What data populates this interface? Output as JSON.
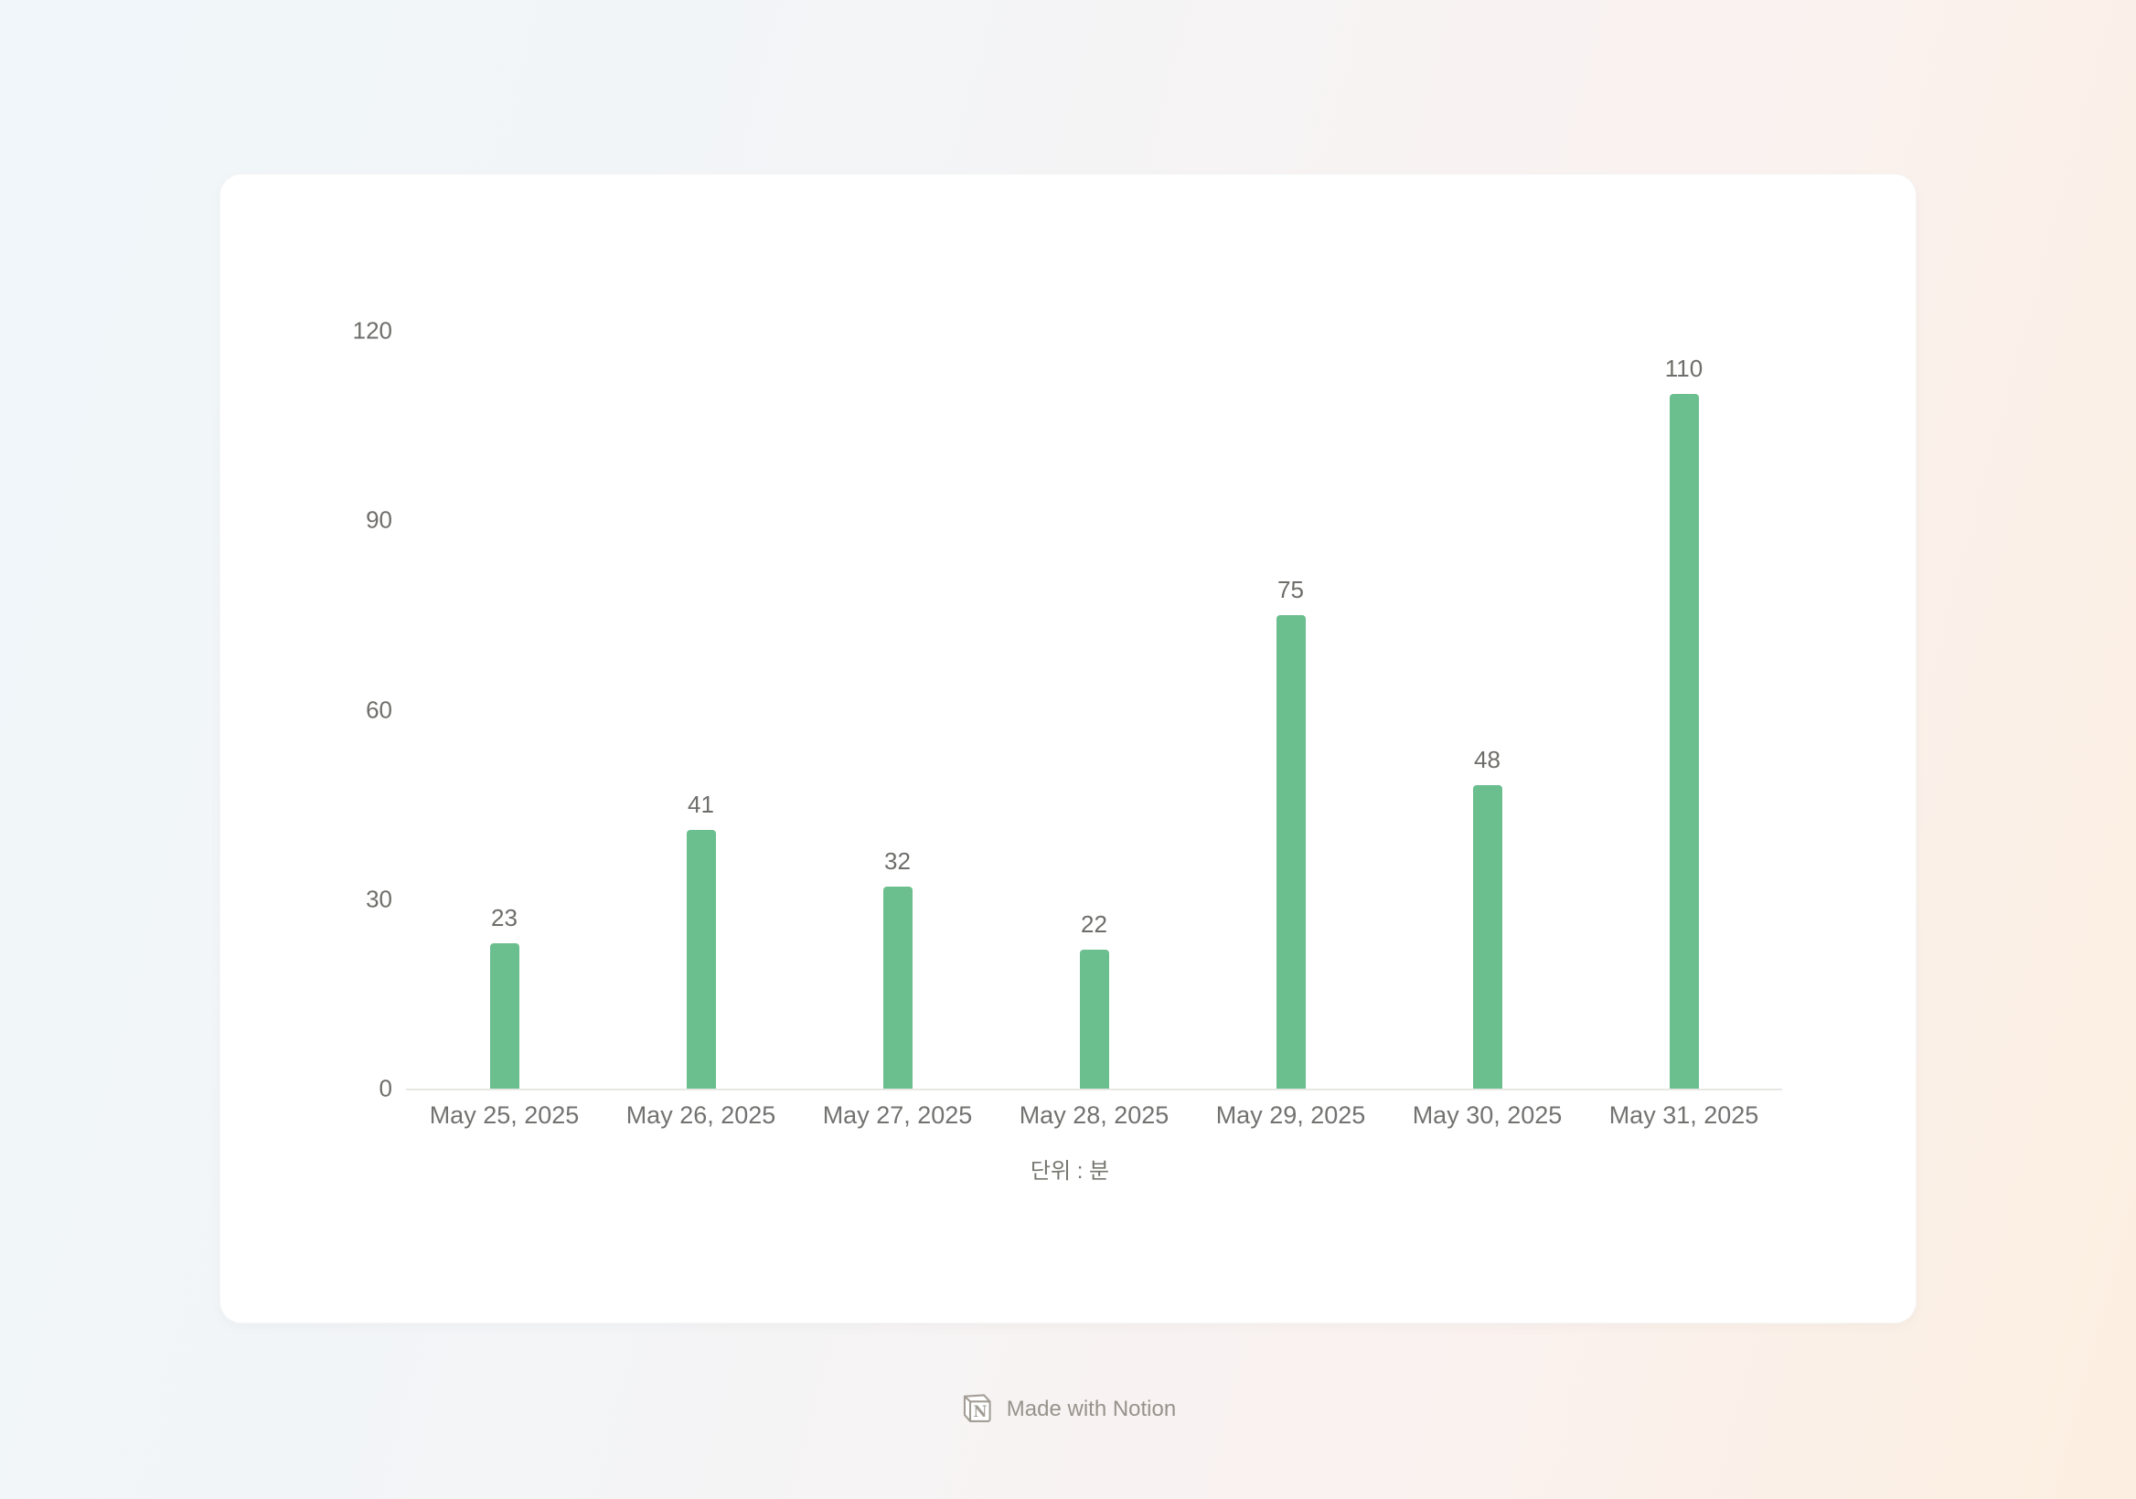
{
  "page": {
    "background": {
      "top_left_color": "#F0F6FA",
      "top_right_color": "#FCF2F0",
      "bottom_right_color": "#FCEFE1"
    },
    "card_color": "#FFFFFF"
  },
  "chart_data": {
    "type": "bar",
    "categories": [
      "May 25, 2025",
      "May 26, 2025",
      "May 27, 2025",
      "May 28, 2025",
      "May 29, 2025",
      "May 30, 2025",
      "May 31, 2025"
    ],
    "values": [
      23,
      41,
      32,
      22,
      75,
      48,
      110
    ],
    "value_labels_shown": true,
    "title": "",
    "xlabel": "단위 : 분",
    "ylabel": "",
    "yticks": [
      0,
      30,
      60,
      90,
      120
    ],
    "ylim": [
      0,
      120
    ],
    "grid": false,
    "legend": false,
    "bar_color": "#6BBE8E",
    "axis_line_color": "#E7E7E5",
    "tick_label_color": "#6F6E6B"
  },
  "footer": {
    "icon": "notion-logo-icon",
    "label": "Made with Notion",
    "text_color": "#97928B"
  }
}
